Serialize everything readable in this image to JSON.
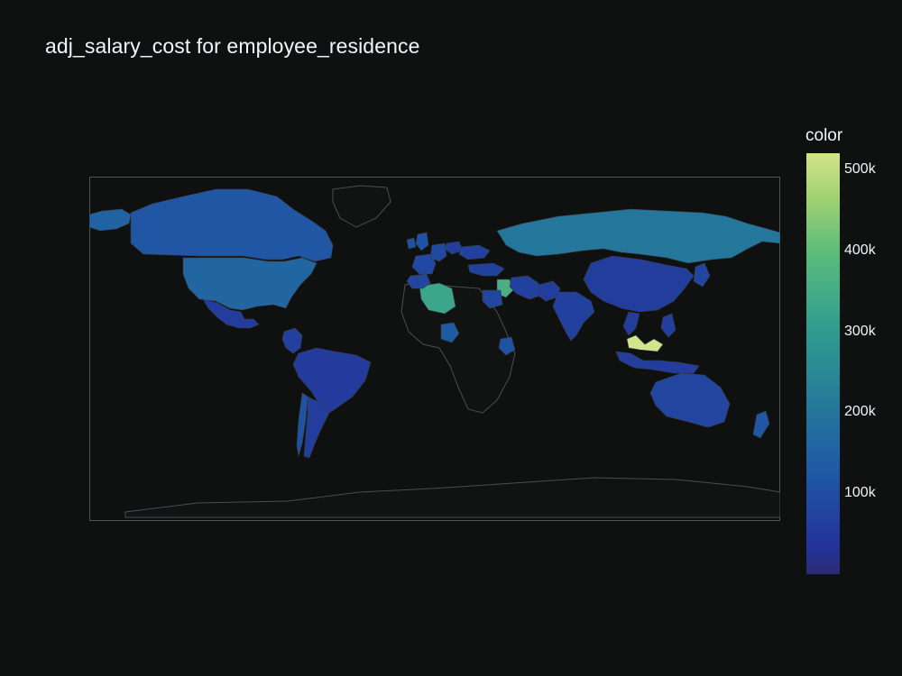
{
  "title": "adj_salary_cost for employee_residence",
  "colorbar": {
    "title": "color",
    "min": 0,
    "max": 520000,
    "ticks": [
      {
        "label": "500k",
        "value": 500000
      },
      {
        "label": "400k",
        "value": 400000
      },
      {
        "label": "300k",
        "value": 300000
      },
      {
        "label": "200k",
        "value": 200000
      },
      {
        "label": "100k",
        "value": 100000
      }
    ]
  },
  "colors": {
    "background": "#0f1111",
    "land_unfilled": "#111313",
    "coastline": "#4a4d52",
    "frame": "#50545a"
  },
  "chart_data": {
    "type": "choropleth",
    "locationmode": "country",
    "title": "adj_salary_cost for employee_residence",
    "colorbar_title": "color",
    "colorscale": "haline-like (dark blue to yellow-green)",
    "range": [
      0,
      520000
    ],
    "values": [
      {
        "name": "United States",
        "value": 160000
      },
      {
        "name": "Canada",
        "value": 120000
      },
      {
        "name": "Alaska",
        "value": 150000
      },
      {
        "name": "Mexico",
        "value": 60000
      },
      {
        "name": "Colombia",
        "value": 70000
      },
      {
        "name": "Brazil",
        "value": 55000
      },
      {
        "name": "Argentina",
        "value": 60000
      },
      {
        "name": "Chile",
        "value": 110000
      },
      {
        "name": "Russia",
        "value": 200000
      },
      {
        "name": "China",
        "value": 60000
      },
      {
        "name": "India",
        "value": 70000
      },
      {
        "name": "Australia",
        "value": 80000
      },
      {
        "name": "New Zealand",
        "value": 120000
      },
      {
        "name": "Japan",
        "value": 80000
      },
      {
        "name": "Algeria",
        "value": 330000
      },
      {
        "name": "Iraq",
        "value": 360000
      },
      {
        "name": "Nigeria",
        "value": 130000
      },
      {
        "name": "Kenya",
        "value": 110000
      },
      {
        "name": "Egypt",
        "value": 80000
      },
      {
        "name": "Malaysia",
        "value": 520000
      },
      {
        "name": "Indonesia",
        "value": 60000
      },
      {
        "name": "Philippines",
        "value": 65000
      },
      {
        "name": "Vietnam",
        "value": 60000
      },
      {
        "name": "Turkey",
        "value": 70000
      },
      {
        "name": "United Kingdom",
        "value": 110000
      },
      {
        "name": "France",
        "value": 90000
      },
      {
        "name": "Spain",
        "value": 80000
      },
      {
        "name": "Germany",
        "value": 90000
      },
      {
        "name": "Ireland",
        "value": 110000
      },
      {
        "name": "Poland",
        "value": 60000
      },
      {
        "name": "Ukraine",
        "value": 70000
      },
      {
        "name": "Iran",
        "value": 70000
      },
      {
        "name": "Pakistan",
        "value": 60000
      }
    ]
  }
}
